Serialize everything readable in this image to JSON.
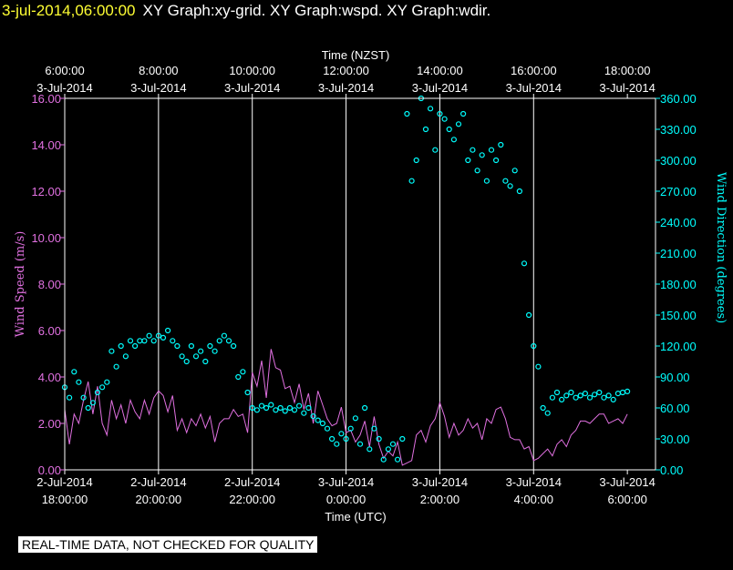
{
  "header": {
    "timestamp": "3-jul-2014,06:00:00",
    "graphs": "XY Graph:xy-grid.  XY Graph:wspd.  XY Graph:wdir."
  },
  "footer": {
    "quality_notice": "REAL-TIME DATA, NOT CHECKED FOR QUALITY"
  },
  "colors": {
    "background": "#000000",
    "speed": "#e070e0",
    "direction": "#00ffff",
    "grid": "#ffffff",
    "timestamp": "#ffff33"
  },
  "chart_data": {
    "type": "scatter",
    "top_axis_title": "Time (NZST)",
    "top_ticks": [
      {
        "hours": 0,
        "line1": "6:00:00",
        "line2": "3-Jul-2014"
      },
      {
        "hours": 2,
        "line1": "8:00:00",
        "line2": "3-Jul-2014"
      },
      {
        "hours": 4,
        "line1": "10:00:00",
        "line2": "3-Jul-2014"
      },
      {
        "hours": 6,
        "line1": "12:00:00",
        "line2": "3-Jul-2014"
      },
      {
        "hours": 8,
        "line1": "14:00:00",
        "line2": "3-Jul-2014"
      },
      {
        "hours": 10,
        "line1": "16:00:00",
        "line2": "3-Jul-2014"
      },
      {
        "hours": 12,
        "line1": "18:00:00",
        "line2": "3-Jul-2014"
      }
    ],
    "bottom_axis_title": "Time (UTC)",
    "bottom_ticks": [
      {
        "hours": 0,
        "line1": "2-Jul-2014",
        "line2": "18:00:00"
      },
      {
        "hours": 2,
        "line1": "2-Jul-2014",
        "line2": "20:00:00"
      },
      {
        "hours": 4,
        "line1": "2-Jul-2014",
        "line2": "22:00:00"
      },
      {
        "hours": 6,
        "line1": "3-Jul-2014",
        "line2": "0:00:00"
      },
      {
        "hours": 8,
        "line1": "3-Jul-2014",
        "line2": "2:00:00"
      },
      {
        "hours": 10,
        "line1": "3-Jul-2014",
        "line2": "4:00:00"
      },
      {
        "hours": 12,
        "line1": "3-Jul-2014",
        "line2": "6:00:00"
      }
    ],
    "xlim": [
      0,
      12.6
    ],
    "left_axis": {
      "label": "Wind Speed (m/s)",
      "ylim": [
        0,
        16
      ],
      "ticks": [
        "0.00",
        "2.00",
        "4.00",
        "6.00",
        "8.00",
        "10.00",
        "12.00",
        "14.00",
        "16.00"
      ]
    },
    "right_axis": {
      "label": "Wind Direction (degrees)",
      "ylim": [
        0,
        360
      ],
      "ticks": [
        "0.00",
        "30.00",
        "60.00",
        "90.00",
        "120.00",
        "150.00",
        "180.00",
        "210.00",
        "240.00",
        "270.00",
        "300.00",
        "330.00",
        "360.00"
      ]
    },
    "series": [
      {
        "name": "Wind Speed",
        "kind": "line",
        "axis": "left",
        "x": [
          0,
          0.1,
          0.2,
          0.3,
          0.4,
          0.5,
          0.6,
          0.7,
          0.8,
          0.9,
          1.0,
          1.1,
          1.2,
          1.3,
          1.4,
          1.5,
          1.6,
          1.7,
          1.8,
          1.9,
          2.0,
          2.1,
          2.2,
          2.3,
          2.4,
          2.5,
          2.6,
          2.7,
          2.8,
          2.9,
          3.0,
          3.1,
          3.2,
          3.3,
          3.4,
          3.5,
          3.6,
          3.7,
          3.8,
          3.9,
          4.0,
          4.1,
          4.2,
          4.3,
          4.4,
          4.5,
          4.6,
          4.7,
          4.8,
          4.9,
          5.0,
          5.1,
          5.2,
          5.3,
          5.4,
          5.5,
          5.6,
          5.7,
          5.8,
          5.9,
          6.0,
          6.1,
          6.2,
          6.3,
          6.4,
          6.5,
          6.6,
          6.7,
          6.8,
          6.9,
          7.0,
          7.1,
          7.2,
          7.3,
          7.4,
          7.5,
          7.6,
          7.7,
          7.8,
          7.9,
          8.0,
          8.1,
          8.2,
          8.3,
          8.4,
          8.5,
          8.6,
          8.7,
          8.8,
          8.9,
          9.0,
          9.1,
          9.2,
          9.3,
          9.4,
          9.5,
          9.6,
          9.7,
          9.8,
          9.9,
          10.0,
          10.1,
          10.2,
          10.3,
          10.4,
          10.5,
          10.6,
          10.7,
          10.8,
          10.9,
          11.0,
          11.1,
          11.2,
          11.3,
          11.4,
          11.5,
          11.6,
          11.7,
          11.8,
          11.9,
          12.0
        ],
        "values": [
          2.6,
          1.1,
          2.4,
          2.0,
          3.0,
          3.8,
          2.4,
          3.6,
          2.0,
          1.5,
          3.0,
          2.2,
          2.8,
          2.0,
          3.0,
          2.5,
          2.2,
          3.0,
          2.4,
          3.1,
          3.4,
          3.2,
          2.5,
          3.2,
          1.7,
          2.2,
          1.6,
          2.2,
          1.9,
          2.4,
          1.8,
          2.3,
          1.2,
          2.0,
          2.2,
          2.2,
          2.6,
          2.3,
          2.4,
          1.6,
          4.2,
          3.6,
          4.7,
          3.1,
          5.2,
          4.4,
          4.3,
          3.5,
          3.6,
          2.9,
          3.7,
          2.6,
          3.3,
          2.0,
          3.4,
          2.8,
          2.2,
          1.9,
          2.0,
          2.7,
          1.6,
          1.7,
          1.2,
          1.5,
          2.1,
          1.0,
          2.3,
          1.1,
          0.5,
          0.8,
          0.6,
          1.2,
          0.2,
          0.3,
          0.4,
          1.5,
          1.7,
          1.2,
          1.9,
          2.2,
          2.9,
          2.3,
          1.4,
          2.0,
          1.5,
          1.7,
          2.2,
          1.8,
          2.0,
          1.3,
          2.2,
          2.0,
          2.6,
          2.7,
          2.2,
          1.4,
          1.3,
          1.3,
          0.9,
          1.0,
          0.4,
          0.5,
          0.7,
          0.9,
          0.6,
          1.1,
          1.3,
          1.0,
          1.5,
          1.7,
          2.1,
          2.1,
          2.0,
          2.2,
          2.4,
          2.4,
          2.0,
          2.1,
          2.2,
          2.0,
          2.4
        ]
      },
      {
        "name": "Wind Direction",
        "kind": "scatter",
        "axis": "right",
        "x": [
          0,
          0.1,
          0.2,
          0.3,
          0.4,
          0.5,
          0.6,
          0.7,
          0.8,
          0.9,
          1.0,
          1.1,
          1.2,
          1.3,
          1.4,
          1.5,
          1.6,
          1.7,
          1.8,
          1.9,
          2.0,
          2.1,
          2.2,
          2.3,
          2.4,
          2.5,
          2.6,
          2.7,
          2.8,
          2.9,
          3.0,
          3.1,
          3.2,
          3.3,
          3.4,
          3.5,
          3.6,
          3.7,
          3.8,
          3.9,
          4.0,
          4.1,
          4.2,
          4.3,
          4.4,
          4.5,
          4.6,
          4.7,
          4.8,
          4.9,
          5.0,
          5.1,
          5.2,
          5.3,
          5.4,
          5.5,
          5.6,
          5.7,
          5.8,
          5.9,
          6.0,
          6.1,
          6.2,
          6.3,
          6.4,
          6.5,
          6.6,
          6.7,
          6.8,
          6.9,
          7.0,
          7.1,
          7.2,
          7.3,
          7.4,
          7.5,
          7.6,
          7.7,
          7.8,
          7.9,
          8.0,
          8.1,
          8.2,
          8.3,
          8.4,
          8.5,
          8.6,
          8.7,
          8.8,
          8.9,
          9.0,
          9.1,
          9.2,
          9.3,
          9.4,
          9.5,
          9.6,
          9.7,
          9.8,
          9.9,
          10.0,
          10.1,
          10.2,
          10.3,
          10.4,
          10.5,
          10.6,
          10.7,
          10.8,
          10.9,
          11.0,
          11.1,
          11.2,
          11.3,
          11.4,
          11.5,
          11.6,
          11.7,
          11.8,
          11.9,
          12.0
        ],
        "values": [
          80,
          70,
          95,
          85,
          70,
          60,
          65,
          75,
          80,
          85,
          115,
          100,
          120,
          110,
          125,
          120,
          125,
          125,
          130,
          125,
          130,
          128,
          135,
          125,
          120,
          110,
          105,
          120,
          110,
          115,
          105,
          120,
          115,
          125,
          130,
          125,
          120,
          90,
          95,
          75,
          60,
          58,
          62,
          60,
          63,
          58,
          60,
          57,
          60,
          58,
          62,
          55,
          60,
          52,
          48,
          45,
          40,
          30,
          25,
          35,
          30,
          40,
          50,
          25,
          60,
          20,
          40,
          30,
          10,
          20,
          25,
          10,
          30,
          345,
          280,
          300,
          360,
          330,
          350,
          310,
          345,
          340,
          330,
          320,
          335,
          345,
          300,
          310,
          290,
          305,
          280,
          310,
          300,
          315,
          280,
          275,
          290,
          270,
          200,
          150,
          120,
          100,
          60,
          55,
          70,
          75,
          68,
          72,
          75,
          70,
          72,
          74,
          70,
          73,
          75,
          70,
          72,
          68,
          74,
          75,
          76
        ]
      }
    ]
  }
}
